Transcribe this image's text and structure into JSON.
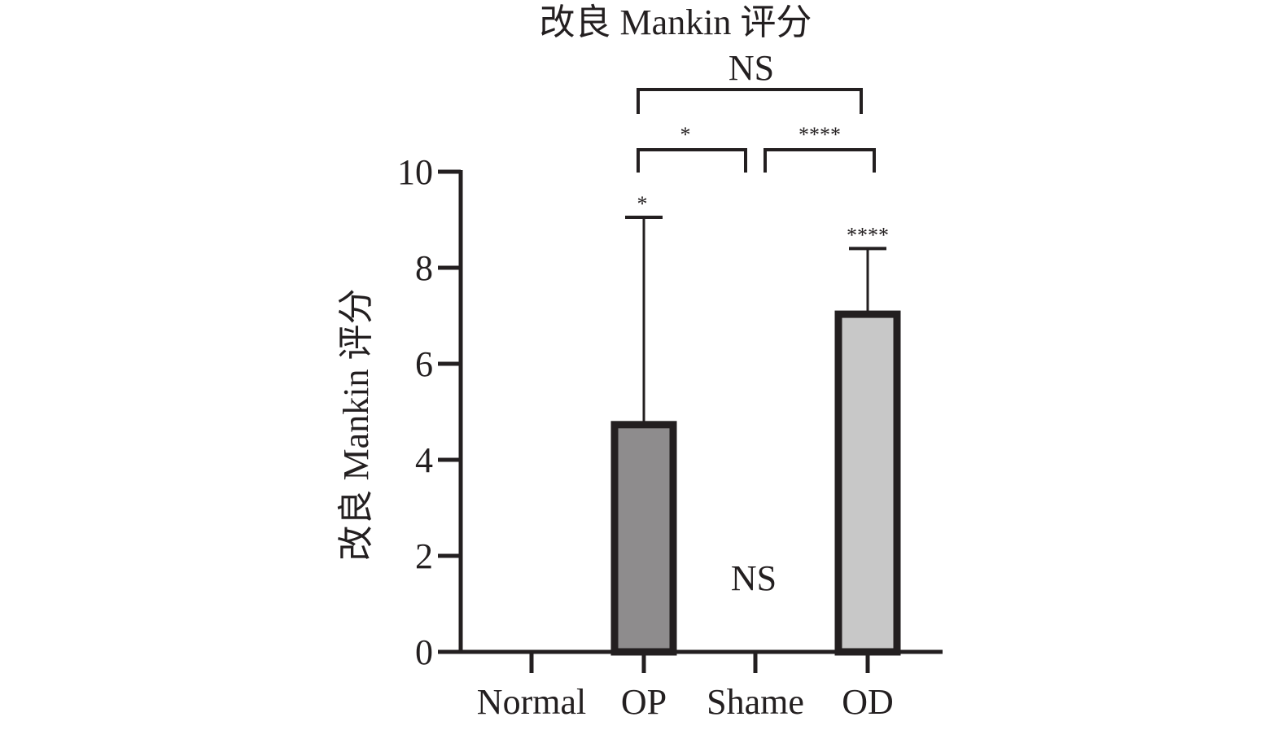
{
  "chart_data": {
    "type": "bar",
    "title": "改良 Mankin 评分",
    "xlabel": "",
    "ylabel": "改良 Mankin 评分",
    "ylim": [
      0,
      10
    ],
    "yticks": [
      0,
      2,
      4,
      6,
      8,
      10
    ],
    "grid": false,
    "legend": "none",
    "categories": [
      "Normal",
      "OP",
      "Shame",
      "OD"
    ],
    "values": [
      0,
      4.8,
      0,
      7.1
    ],
    "error_upper": [
      0,
      9.05,
      0,
      8.4
    ],
    "bar_colors": [
      "#ffffff",
      "#8e8c8d",
      "#ffffff",
      "#c8c8c8"
    ],
    "outline_color": "#231f20",
    "bar_annotations": [
      {
        "category": "OP",
        "text": "*"
      },
      {
        "category": "Shame",
        "text": "NS"
      },
      {
        "category": "OD",
        "text": "****"
      }
    ],
    "comparisons": [
      {
        "from": "OP",
        "to": "Shame",
        "label": "*"
      },
      {
        "from": "Shame",
        "to": "OD",
        "label": "****"
      },
      {
        "from": "OP",
        "to": "OD",
        "label": "NS"
      }
    ]
  }
}
